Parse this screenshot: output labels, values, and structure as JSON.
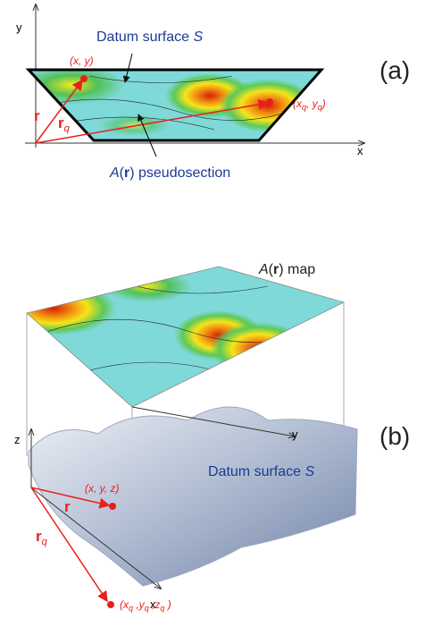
{
  "panel_a": {
    "axis_y": "y",
    "axis_x": "x",
    "datum_label": [
      "Datum surface ",
      "S"
    ],
    "point_label": "(x, y)",
    "vec_r": "r",
    "vec_rq": [
      "r",
      "q"
    ],
    "point_q_label": [
      "(x",
      "q",
      ", y",
      "q",
      ")"
    ],
    "section_label": [
      "A",
      "(",
      "r",
      ")  pseudosection"
    ],
    "panel_label": "(a)"
  },
  "panel_b": {
    "map_label": [
      "A",
      "(",
      "r",
      ")  map"
    ],
    "axis_y": "y",
    "axis_z": "z",
    "axis_x": "x",
    "panel_label": "(b)",
    "datum_label": [
      "Datum surface ",
      "S"
    ],
    "point_label": "(x, y, z)",
    "vec_r": "r",
    "vec_rq": [
      "r",
      "q"
    ],
    "point_q_label": [
      "(x",
      "q",
      " ,y",
      "q",
      " ,z",
      "q",
      " )"
    ]
  }
}
